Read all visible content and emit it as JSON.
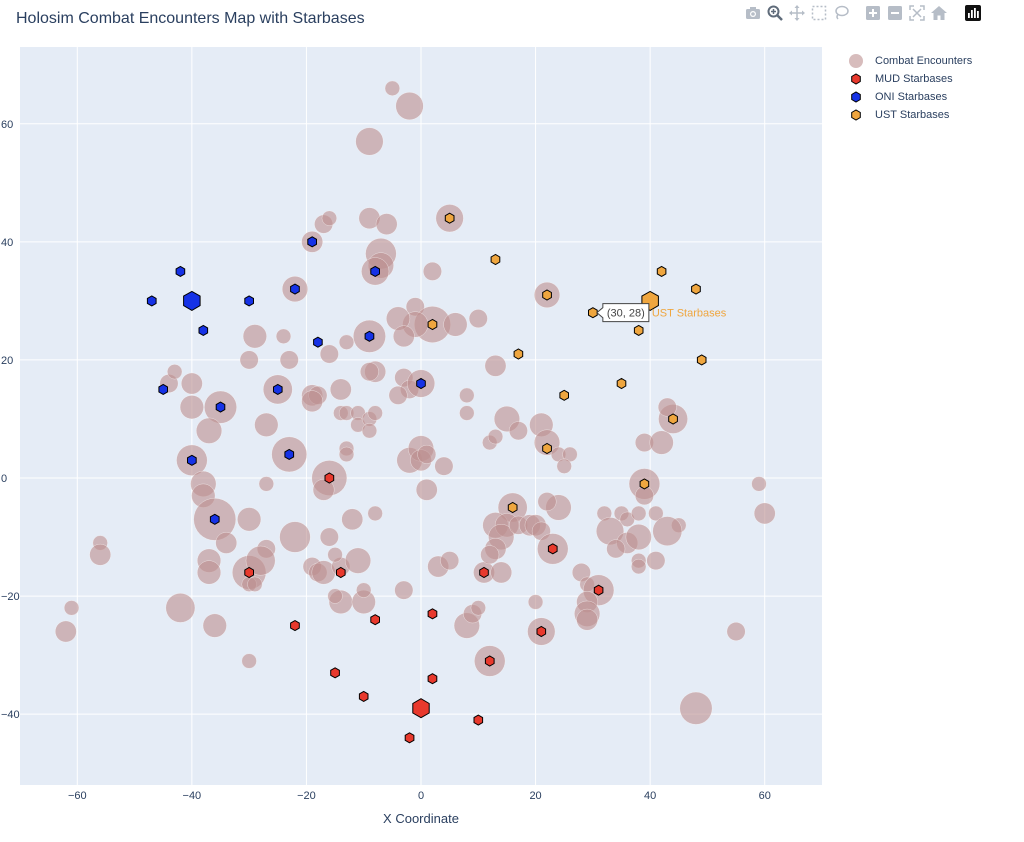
{
  "chart_data": {
    "type": "scatter",
    "title": "Holosim Combat Encounters Map with Starbases",
    "xlabel": "X Coordinate",
    "ylabel": "",
    "xlim": [
      -70,
      70
    ],
    "ylim": [
      -52,
      73
    ],
    "xticks": [
      -60,
      -40,
      -20,
      0,
      20,
      40,
      60
    ],
    "yticks": [
      -40,
      -20,
      0,
      20,
      40,
      60
    ],
    "grid": true,
    "legend_position": "top-right",
    "series": [
      {
        "name": "Combat Encounters",
        "marker": "circle",
        "color": "#bc8f8f",
        "points": [
          {
            "x": -2,
            "y": 63,
            "size": 6
          },
          {
            "x": -5,
            "y": 66,
            "size": 1
          },
          {
            "x": -9,
            "y": 57,
            "size": 6
          },
          {
            "x": 5,
            "y": 44,
            "size": 6
          },
          {
            "x": -9,
            "y": 44,
            "size": 3
          },
          {
            "x": -6,
            "y": 43,
            "size": 3
          },
          {
            "x": -17,
            "y": 43,
            "size": 2
          },
          {
            "x": -16,
            "y": 44,
            "size": 1
          },
          {
            "x": -19,
            "y": 40,
            "size": 3
          },
          {
            "x": -7,
            "y": 38,
            "size": 8
          },
          {
            "x": -7,
            "y": 36,
            "size": 5
          },
          {
            "x": -8,
            "y": 35,
            "size": 6
          },
          {
            "x": 2,
            "y": 35,
            "size": 2
          },
          {
            "x": -22,
            "y": 32,
            "size": 5
          },
          {
            "x": 22,
            "y": 31,
            "size": 5
          },
          {
            "x": -1,
            "y": 29,
            "size": 2
          },
          {
            "x": 2,
            "y": 26,
            "size": 12
          },
          {
            "x": -1,
            "y": 26,
            "size": 5
          },
          {
            "x": -4,
            "y": 27,
            "size": 4
          },
          {
            "x": -9,
            "y": 24,
            "size": 9
          },
          {
            "x": -3,
            "y": 24,
            "size": 3
          },
          {
            "x": 6,
            "y": 26,
            "size": 4
          },
          {
            "x": 10,
            "y": 27,
            "size": 2
          },
          {
            "x": -29,
            "y": 24,
            "size": 4
          },
          {
            "x": -24,
            "y": 24,
            "size": 1
          },
          {
            "x": -16,
            "y": 21,
            "size": 2
          },
          {
            "x": -13,
            "y": 23,
            "size": 1
          },
          {
            "x": -30,
            "y": 20,
            "size": 2
          },
          {
            "x": -23,
            "y": 20,
            "size": 2
          },
          {
            "x": -8,
            "y": 18,
            "size": 3
          },
          {
            "x": -9,
            "y": 18,
            "size": 2
          },
          {
            "x": 13,
            "y": 19,
            "size": 3
          },
          {
            "x": -40,
            "y": 16,
            "size": 3
          },
          {
            "x": -44,
            "y": 16,
            "size": 2
          },
          {
            "x": -43,
            "y": 18,
            "size": 1
          },
          {
            "x": -25,
            "y": 15,
            "size": 7
          },
          {
            "x": -19,
            "y": 14,
            "size": 3
          },
          {
            "x": -18,
            "y": 14,
            "size": 2
          },
          {
            "x": -14,
            "y": 15,
            "size": 3
          },
          {
            "x": -3,
            "y": 17,
            "size": 2
          },
          {
            "x": -2,
            "y": 15,
            "size": 2
          },
          {
            "x": 0,
            "y": 16,
            "size": 6
          },
          {
            "x": -4,
            "y": 14,
            "size": 2
          },
          {
            "x": 8,
            "y": 14,
            "size": 1
          },
          {
            "x": -40,
            "y": 12,
            "size": 4
          },
          {
            "x": -35,
            "y": 12,
            "size": 9
          },
          {
            "x": -19,
            "y": 13,
            "size": 3
          },
          {
            "x": -14,
            "y": 11,
            "size": 1
          },
          {
            "x": -13,
            "y": 11,
            "size": 1
          },
          {
            "x": -11,
            "y": 11,
            "size": 1
          },
          {
            "x": -11,
            "y": 9,
            "size": 1
          },
          {
            "x": -9,
            "y": 10,
            "size": 1
          },
          {
            "x": -8,
            "y": 11,
            "size": 1
          },
          {
            "x": 8,
            "y": 11,
            "size": 1
          },
          {
            "x": 15,
            "y": 10,
            "size": 5
          },
          {
            "x": 17,
            "y": 8,
            "size": 2
          },
          {
            "x": 21,
            "y": 9,
            "size": 4
          },
          {
            "x": 44,
            "y": 10,
            "size": 7
          },
          {
            "x": 43,
            "y": 12,
            "size": 2
          },
          {
            "x": -37,
            "y": 8,
            "size": 5
          },
          {
            "x": -27,
            "y": 9,
            "size": 4
          },
          {
            "x": -9,
            "y": 8,
            "size": 1
          },
          {
            "x": 12,
            "y": 6,
            "size": 1
          },
          {
            "x": 13,
            "y": 7,
            "size": 1
          },
          {
            "x": 22,
            "y": 6,
            "size": 5
          },
          {
            "x": 39,
            "y": 6,
            "size": 2
          },
          {
            "x": 42,
            "y": 6,
            "size": 4
          },
          {
            "x": -40,
            "y": 3,
            "size": 8
          },
          {
            "x": -23,
            "y": 4,
            "size": 11
          },
          {
            "x": -13,
            "y": 5,
            "size": 1
          },
          {
            "x": -13,
            "y": 4,
            "size": 1
          },
          {
            "x": -2,
            "y": 3,
            "size": 5
          },
          {
            "x": 0,
            "y": 5,
            "size": 5
          },
          {
            "x": 0,
            "y": 3,
            "size": 3
          },
          {
            "x": 1,
            "y": 4,
            "size": 2
          },
          {
            "x": 4,
            "y": 2,
            "size": 2
          },
          {
            "x": 24,
            "y": 4,
            "size": 1
          },
          {
            "x": 26,
            "y": 4,
            "size": 1
          },
          {
            "x": 25,
            "y": 2,
            "size": 1
          },
          {
            "x": -38,
            "y": -1,
            "size": 5
          },
          {
            "x": -38,
            "y": -3,
            "size": 4
          },
          {
            "x": -27,
            "y": -1,
            "size": 1
          },
          {
            "x": -16,
            "y": 0,
            "size": 11
          },
          {
            "x": -17,
            "y": -2,
            "size": 3
          },
          {
            "x": 1,
            "y": -2,
            "size": 3
          },
          {
            "x": 39,
            "y": -1,
            "size": 8
          },
          {
            "x": 39,
            "y": -3,
            "size": 2
          },
          {
            "x": 59,
            "y": -1,
            "size": 1
          },
          {
            "x": -36,
            "y": -7,
            "size": 17
          },
          {
            "x": -30,
            "y": -7,
            "size": 4
          },
          {
            "x": -12,
            "y": -7,
            "size": 3
          },
          {
            "x": -8,
            "y": -6,
            "size": 1
          },
          {
            "x": 16,
            "y": -5,
            "size": 7
          },
          {
            "x": 24,
            "y": -5,
            "size": 5
          },
          {
            "x": 22,
            "y": -4,
            "size": 2
          },
          {
            "x": 32,
            "y": -6,
            "size": 1
          },
          {
            "x": 35,
            "y": -6,
            "size": 1
          },
          {
            "x": 36,
            "y": -7,
            "size": 1
          },
          {
            "x": 38,
            "y": -6,
            "size": 1
          },
          {
            "x": 41,
            "y": -6,
            "size": 1
          },
          {
            "x": 45,
            "y": -8,
            "size": 1
          },
          {
            "x": 60,
            "y": -6,
            "size": 3
          },
          {
            "x": -34,
            "y": -11,
            "size": 3
          },
          {
            "x": -27,
            "y": -12,
            "size": 2
          },
          {
            "x": -22,
            "y": -10,
            "size": 8
          },
          {
            "x": -16,
            "y": -10,
            "size": 2
          },
          {
            "x": 13,
            "y": -8,
            "size": 5
          },
          {
            "x": 15,
            "y": -8,
            "size": 4
          },
          {
            "x": 14,
            "y": -10,
            "size": 5
          },
          {
            "x": 13,
            "y": -12,
            "size": 3
          },
          {
            "x": 17,
            "y": -8,
            "size": 2
          },
          {
            "x": 19,
            "y": -8,
            "size": 3
          },
          {
            "x": 20,
            "y": -8,
            "size": 3
          },
          {
            "x": 21,
            "y": -9,
            "size": 2
          },
          {
            "x": 23,
            "y": -12,
            "size": 8
          },
          {
            "x": 33,
            "y": -9,
            "size": 6
          },
          {
            "x": 36,
            "y": -11,
            "size": 3
          },
          {
            "x": 34,
            "y": -12,
            "size": 2
          },
          {
            "x": 38,
            "y": -10,
            "size": 5
          },
          {
            "x": 43,
            "y": -9,
            "size": 7
          },
          {
            "x": -56,
            "y": -11,
            "size": 1
          },
          {
            "x": -56,
            "y": -13,
            "size": 3
          },
          {
            "x": -37,
            "y": -14,
            "size": 4
          },
          {
            "x": -37,
            "y": -16,
            "size": 4
          },
          {
            "x": -30,
            "y": -16,
            "size": 10
          },
          {
            "x": -28,
            "y": -14,
            "size": 7
          },
          {
            "x": -19,
            "y": -15,
            "size": 2
          },
          {
            "x": -18,
            "y": -16,
            "size": 2
          },
          {
            "x": -17,
            "y": -16,
            "size": 4
          },
          {
            "x": -14,
            "y": -15,
            "size": 2
          },
          {
            "x": -11,
            "y": -14,
            "size": 5
          },
          {
            "x": -15,
            "y": -13,
            "size": 1
          },
          {
            "x": 3,
            "y": -15,
            "size": 3
          },
          {
            "x": 5,
            "y": -14,
            "size": 2
          },
          {
            "x": 11,
            "y": -16,
            "size": 3
          },
          {
            "x": 12,
            "y": -13,
            "size": 2
          },
          {
            "x": 14,
            "y": -16,
            "size": 3
          },
          {
            "x": 28,
            "y": -16,
            "size": 2
          },
          {
            "x": 29,
            "y": -18,
            "size": 1
          },
          {
            "x": 31,
            "y": -19,
            "size": 8
          },
          {
            "x": 29,
            "y": -21,
            "size": 3
          },
          {
            "x": 38,
            "y": -14,
            "size": 1
          },
          {
            "x": 38,
            "y": -15,
            "size": 1
          },
          {
            "x": 41,
            "y": -14,
            "size": 2
          },
          {
            "x": -62,
            "y": -26,
            "size": 3
          },
          {
            "x": -61,
            "y": -22,
            "size": 1
          },
          {
            "x": -42,
            "y": -22,
            "size": 7
          },
          {
            "x": -36,
            "y": -25,
            "size": 4
          },
          {
            "x": -30,
            "y": -18,
            "size": 1
          },
          {
            "x": -29,
            "y": -18,
            "size": 1
          },
          {
            "x": -14,
            "y": -21,
            "size": 4
          },
          {
            "x": -15,
            "y": -20,
            "size": 1
          },
          {
            "x": -10,
            "y": -21,
            "size": 4
          },
          {
            "x": -10,
            "y": -19,
            "size": 1
          },
          {
            "x": -3,
            "y": -19,
            "size": 2
          },
          {
            "x": 8,
            "y": -25,
            "size": 5
          },
          {
            "x": 9,
            "y": -23,
            "size": 2
          },
          {
            "x": 10,
            "y": -22,
            "size": 1
          },
          {
            "x": 20,
            "y": -21,
            "size": 1
          },
          {
            "x": 21,
            "y": -26,
            "size": 6
          },
          {
            "x": 29,
            "y": -23,
            "size": 5
          },
          {
            "x": 29,
            "y": -24,
            "size": 3
          },
          {
            "x": 55,
            "y": -26,
            "size": 2
          },
          {
            "x": -30,
            "y": -31,
            "size": 1
          },
          {
            "x": 12,
            "y": -31,
            "size": 8
          },
          {
            "x": 48,
            "y": -39,
            "size": 9
          }
        ]
      },
      {
        "name": "MUD Starbases",
        "marker": "hexagon",
        "color": "#e8392d",
        "points": [
          {
            "x": -16,
            "y": 0
          },
          {
            "x": 11,
            "y": -16
          },
          {
            "x": 23,
            "y": -12
          },
          {
            "x": -30,
            "y": -16
          },
          {
            "x": -14,
            "y": -16
          },
          {
            "x": 31,
            "y": -19
          },
          {
            "x": -22,
            "y": -25
          },
          {
            "x": -8,
            "y": -24
          },
          {
            "x": 2,
            "y": -23
          },
          {
            "x": 21,
            "y": -26
          },
          {
            "x": 12,
            "y": -31
          },
          {
            "x": -15,
            "y": -33
          },
          {
            "x": 2,
            "y": -34
          },
          {
            "x": -10,
            "y": -37
          },
          {
            "x": 0,
            "y": -39,
            "big": true
          },
          {
            "x": 10,
            "y": -41
          },
          {
            "x": -2,
            "y": -44
          }
        ]
      },
      {
        "name": "ONI Starbases",
        "marker": "hexagon",
        "color": "#1632e6",
        "points": [
          {
            "x": -19,
            "y": 40
          },
          {
            "x": -42,
            "y": 35
          },
          {
            "x": -8,
            "y": 35
          },
          {
            "x": -47,
            "y": 30
          },
          {
            "x": -40,
            "y": 30,
            "big": true
          },
          {
            "x": -30,
            "y": 30
          },
          {
            "x": -22,
            "y": 32
          },
          {
            "x": -38,
            "y": 25
          },
          {
            "x": -18,
            "y": 23
          },
          {
            "x": -9,
            "y": 24
          },
          {
            "x": 0,
            "y": 16
          },
          {
            "x": -45,
            "y": 15
          },
          {
            "x": -25,
            "y": 15
          },
          {
            "x": -35,
            "y": 12
          },
          {
            "x": -23,
            "y": 4
          },
          {
            "x": -40,
            "y": 3
          },
          {
            "x": -36,
            "y": -7
          }
        ]
      },
      {
        "name": "UST Starbases",
        "marker": "hexagon",
        "color": "#efa63f",
        "points": [
          {
            "x": 5,
            "y": 44
          },
          {
            "x": 13,
            "y": 37
          },
          {
            "x": 42,
            "y": 35
          },
          {
            "x": 48,
            "y": 32
          },
          {
            "x": 22,
            "y": 31
          },
          {
            "x": 40,
            "y": 30,
            "big": true
          },
          {
            "x": 30,
            "y": 28
          },
          {
            "x": 2,
            "y": 26
          },
          {
            "x": 38,
            "y": 25
          },
          {
            "x": 17,
            "y": 21
          },
          {
            "x": 49,
            "y": 20
          },
          {
            "x": 35,
            "y": 16
          },
          {
            "x": 25,
            "y": 14
          },
          {
            "x": 44,
            "y": 10
          },
          {
            "x": 22,
            "y": 5
          },
          {
            "x": 39,
            "y": -1
          },
          {
            "x": 16,
            "y": -5
          }
        ]
      }
    ],
    "hover": {
      "x": 30,
      "y": 28,
      "text": "(30, 28)",
      "series_label": "UST Starbases"
    }
  },
  "ui": {
    "modebar": [
      "camera-icon",
      "zoom-icon",
      "pan-icon",
      "box-select-icon",
      "lasso-icon",
      "zoom-in-icon",
      "zoom-out-icon",
      "autoscale-icon",
      "reset-axes-icon",
      "plotly-logo-icon"
    ]
  },
  "colors": {
    "plot_bg": "#e5ecf6",
    "grid": "#ffffff",
    "text": "#2a3f5f",
    "encounter": "#bc8f8f"
  }
}
